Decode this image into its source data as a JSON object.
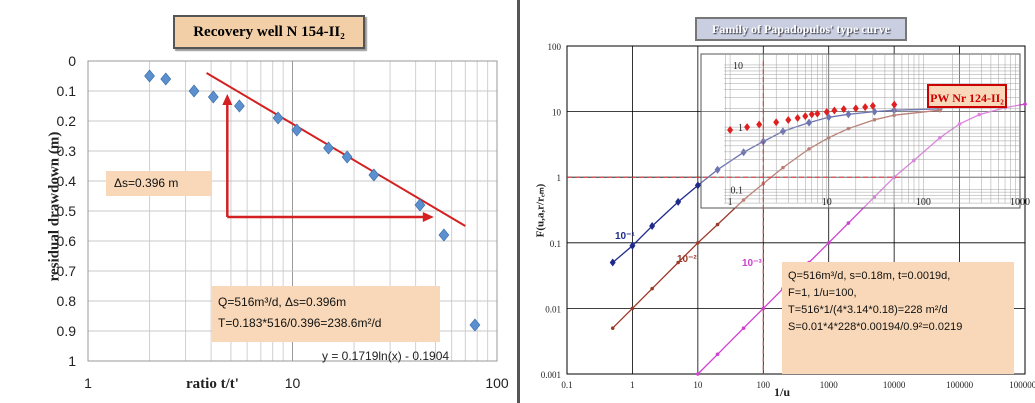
{
  "left": {
    "title": "Recovery well N 154-II₂",
    "ylabel": "residual drawdown (m)",
    "xlabel": "ratio t/t'",
    "ds_label": "Δs=0.396 m",
    "calc_line1": "Q=516m³/d, Δs=0.396m",
    "calc_line2": "T=0.183*516/0.396=238.6m²/d",
    "equation": "y = 0.1719ln(x) - 0.1904",
    "y_ticks": [
      "0",
      "0.1",
      "0.2",
      "0.3",
      "0.4",
      "0.5",
      "0.6",
      "0.7",
      "0.8",
      "0.9",
      "1"
    ],
    "x_ticks": [
      "1",
      "10",
      "100"
    ]
  },
  "right": {
    "title": "Family of Papadopulos' type curve",
    "pw_label": "PW Nr 124-II₂",
    "ylabel": "F(u,a,r/rₑₘ)",
    "xlabel": "1/u",
    "y_ticks": [
      "100",
      "10",
      "1",
      "0.1",
      "0.01",
      "0.001"
    ],
    "x_ticks": [
      "0.1",
      "1",
      "10",
      "100",
      "1000",
      "10000",
      "100000",
      "1000000"
    ],
    "inset_y_ticks": [
      "10",
      "1",
      "0.1"
    ],
    "inset_x_ticks": [
      "1",
      "10",
      "100",
      "1000"
    ],
    "curve_labels": [
      "10⁻¹",
      "10⁻²",
      "10⁻³"
    ],
    "calc_lines": [
      "Q=516m³/d,  s=0.18m, t=0.0019d,",
      "F=1, 1/u=100,",
      "T=516*1/(4*3.14*0.18)=228  m²/d",
      "S=0.01*4*228*0.00194/0.9²=0.0219"
    ]
  },
  "colors": {
    "points_left": "#5b8fce",
    "fit_line": "#d42020",
    "curve1": "#1f2a8a",
    "curve2": "#9a3a2a",
    "curve3": "#d040d0",
    "inset_points": "#e02020",
    "annotation_bg": "#f8d8b8"
  },
  "chart_data": [
    {
      "type": "scatter",
      "title": "Recovery well N 154-II₂",
      "xlabel": "ratio t/t'",
      "ylabel": "residual drawdown (m)",
      "x_scale": "log",
      "xlim": [
        1,
        100
      ],
      "ylim": [
        0,
        1
      ],
      "y_inverted": true,
      "grid": true,
      "series": [
        {
          "x": [
            2.0,
            2.4,
            3.3,
            4.1,
            5.5,
            8.5,
            10.5,
            15,
            18.5,
            25,
            42,
            55,
            78
          ],
          "y": [
            0.05,
            0.06,
            0.1,
            0.12,
            0.15,
            0.19,
            0.23,
            0.29,
            0.32,
            0.38,
            0.48,
            0.58,
            0.88
          ]
        }
      ],
      "fit_line": {
        "equation": "y = 0.1719ln(x) - 0.1904",
        "x": [
          3.8,
          70
        ],
        "y": [
          0.04,
          0.55
        ]
      },
      "annotations": [
        "Δs=0.396 m",
        "Q=516m³/d, Δs=0.396m",
        "T=0.183*516/0.396=238.6m²/d"
      ]
    },
    {
      "type": "line",
      "title": "Family of Papadopulos' type curve",
      "xlabel": "1/u",
      "ylabel": "F(u,a,r/rₑₘ)",
      "x_scale": "log",
      "y_scale": "log",
      "xlim": [
        0.1,
        1000000
      ],
      "ylim": [
        0.001,
        100
      ],
      "grid": true,
      "series": [
        {
          "name": "10⁻¹",
          "x": [
            0.5,
            1,
            2,
            5,
            10,
            20,
            50,
            100,
            200,
            500,
            1000,
            2000,
            5000,
            10000,
            50000
          ],
          "y": [
            0.05,
            0.09,
            0.18,
            0.42,
            0.75,
            1.3,
            2.4,
            3.5,
            5.0,
            6.8,
            8.2,
            9.1,
            10.0,
            10.5,
            11.0
          ]
        },
        {
          "name": "10⁻²",
          "x": [
            0.5,
            1,
            2,
            5,
            10,
            20,
            50,
            100,
            200,
            500,
            1000,
            2000,
            5000,
            10000,
            50000
          ],
          "y": [
            0.005,
            0.01,
            0.02,
            0.05,
            0.1,
            0.19,
            0.45,
            0.8,
            1.4,
            2.7,
            4.0,
            5.5,
            7.5,
            8.8,
            10.5
          ]
        },
        {
          "name": "10⁻³",
          "x": [
            10,
            20,
            50,
            100,
            200,
            500,
            1000,
            2000,
            5000,
            10000,
            20000,
            50000,
            100000,
            200000,
            500000,
            1000000
          ],
          "y": [
            0.001,
            0.002,
            0.005,
            0.01,
            0.02,
            0.05,
            0.1,
            0.2,
            0.5,
            1.0,
            1.8,
            4.0,
            6.5,
            9.0,
            11.5,
            13.0
          ]
        }
      ],
      "inset": {
        "label": "PW Nr 124-II₂",
        "x_scale": "log",
        "y_scale": "log",
        "xlim": [
          0.5,
          1000
        ],
        "ylim": [
          0.05,
          15
        ],
        "points": {
          "x": [
            1,
            1.5,
            2,
            3,
            4,
            5,
            6,
            7,
            8,
            10,
            12,
            15,
            20,
            25,
            30,
            50
          ],
          "y": [
            0.9,
            1.0,
            1.1,
            1.2,
            1.3,
            1.4,
            1.5,
            1.6,
            1.65,
            1.75,
            1.85,
            1.95,
            2.0,
            2.1,
            2.2,
            2.3
          ]
        }
      },
      "annotations": [
        "Q=516m³/d,  s=0.18m, t=0.0019d,",
        "F=1, 1/u=100,",
        "T=516*1/(4*3.14*0.18)=228  m²/d",
        "S=0.01*4*228*0.00194/0.9²=0.0219"
      ]
    }
  ]
}
